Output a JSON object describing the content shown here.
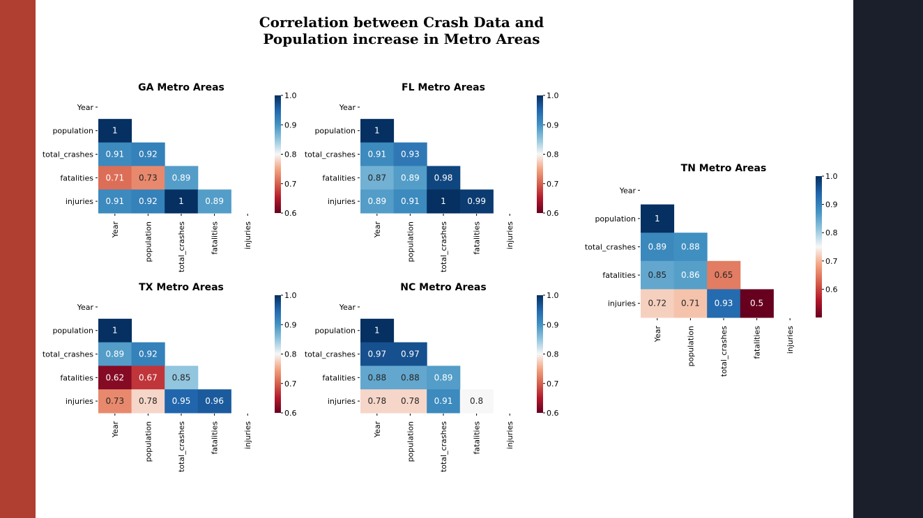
{
  "slide": {
    "title_line1": "Correlation between Crash Data and",
    "title_line2": "Population increase in Metro Areas",
    "colors": {
      "left_bar": "#b03e31",
      "right_bar": "#1b1f2b",
      "background": "#ffffff"
    }
  },
  "chart_data": [
    {
      "type": "heatmap",
      "title": "GA Metro Areas",
      "rows": [
        "Year",
        "population",
        "total_crashes",
        "fatalities",
        "injuries"
      ],
      "cols": [
        "Year",
        "population",
        "total_crashes",
        "fatalities",
        "injuries"
      ],
      "mask": "upper-triangle",
      "values": [
        [
          null,
          null,
          null,
          null,
          null
        ],
        [
          1,
          null,
          null,
          null,
          null
        ],
        [
          0.91,
          0.92,
          null,
          null,
          null
        ],
        [
          0.71,
          0.73,
          0.89,
          null,
          null
        ],
        [
          0.91,
          0.92,
          1,
          0.89,
          null
        ]
      ],
      "colorbar": {
        "ticks": [
          "1.0",
          "0.9",
          "0.8",
          "0.7",
          "0.6"
        ],
        "vmin": 0.6,
        "vmax": 1.0,
        "colormap": "RdBu"
      }
    },
    {
      "type": "heatmap",
      "title": "FL Metro Areas",
      "rows": [
        "Year",
        "population",
        "total_crashes",
        "fatalities",
        "injuries"
      ],
      "cols": [
        "Year",
        "population",
        "total_crashes",
        "fatalities",
        "injuries"
      ],
      "mask": "upper-triangle",
      "values": [
        [
          null,
          null,
          null,
          null,
          null
        ],
        [
          1,
          null,
          null,
          null,
          null
        ],
        [
          0.91,
          0.93,
          null,
          null,
          null
        ],
        [
          0.87,
          0.89,
          0.98,
          null,
          null
        ],
        [
          0.89,
          0.91,
          1,
          0.99,
          null
        ]
      ],
      "colorbar": {
        "ticks": [
          "1.0",
          "0.9",
          "0.8",
          "0.7",
          "0.6"
        ],
        "vmin": 0.6,
        "vmax": 1.0,
        "colormap": "RdBu"
      }
    },
    {
      "type": "heatmap",
      "title": "TX Metro Areas",
      "rows": [
        "Year",
        "population",
        "total_crashes",
        "fatalities",
        "injuries"
      ],
      "cols": [
        "Year",
        "population",
        "total_crashes",
        "fatalities",
        "injuries"
      ],
      "mask": "upper-triangle",
      "values": [
        [
          null,
          null,
          null,
          null,
          null
        ],
        [
          1,
          null,
          null,
          null,
          null
        ],
        [
          0.89,
          0.92,
          null,
          null,
          null
        ],
        [
          0.62,
          0.67,
          0.85,
          null,
          null
        ],
        [
          0.73,
          0.78,
          0.95,
          0.96,
          null
        ]
      ],
      "colorbar": {
        "ticks": [
          "1.0",
          "0.9",
          "0.8",
          "0.7",
          "0.6"
        ],
        "vmin": 0.6,
        "vmax": 1.0,
        "colormap": "RdBu"
      }
    },
    {
      "type": "heatmap",
      "title": "NC Metro Areas",
      "rows": [
        "Year",
        "population",
        "total_crashes",
        "fatalities",
        "injuries"
      ],
      "cols": [
        "Year",
        "population",
        "total_crashes",
        "fatalities",
        "injuries"
      ],
      "mask": "upper-triangle",
      "values": [
        [
          null,
          null,
          null,
          null,
          null
        ],
        [
          1,
          null,
          null,
          null,
          null
        ],
        [
          0.97,
          0.97,
          null,
          null,
          null
        ],
        [
          0.88,
          0.88,
          0.89,
          null,
          null
        ],
        [
          0.78,
          0.78,
          0.91,
          0.8,
          null
        ]
      ],
      "colorbar": {
        "ticks": [
          "1.0",
          "0.9",
          "0.8",
          "0.7",
          "0.6"
        ],
        "vmin": 0.6,
        "vmax": 1.0,
        "colormap": "RdBu"
      }
    },
    {
      "type": "heatmap",
      "title": "TN Metro Areas",
      "rows": [
        "Year",
        "population",
        "total_crashes",
        "fatalities",
        "injuries"
      ],
      "cols": [
        "Year",
        "population",
        "total_crashes",
        "fatalities",
        "injuries"
      ],
      "mask": "upper-triangle",
      "values": [
        [
          null,
          null,
          null,
          null,
          null
        ],
        [
          1,
          null,
          null,
          null,
          null
        ],
        [
          0.89,
          0.88,
          null,
          null,
          null
        ],
        [
          0.85,
          0.86,
          0.65,
          null,
          null
        ],
        [
          0.72,
          0.71,
          0.93,
          0.5,
          null
        ]
      ],
      "colorbar": {
        "ticks": [
          "1.0",
          "0.9",
          "0.8",
          "0.7",
          "0.6"
        ],
        "vmin": 0.5,
        "vmax": 1.0,
        "colormap": "RdBu"
      }
    }
  ]
}
